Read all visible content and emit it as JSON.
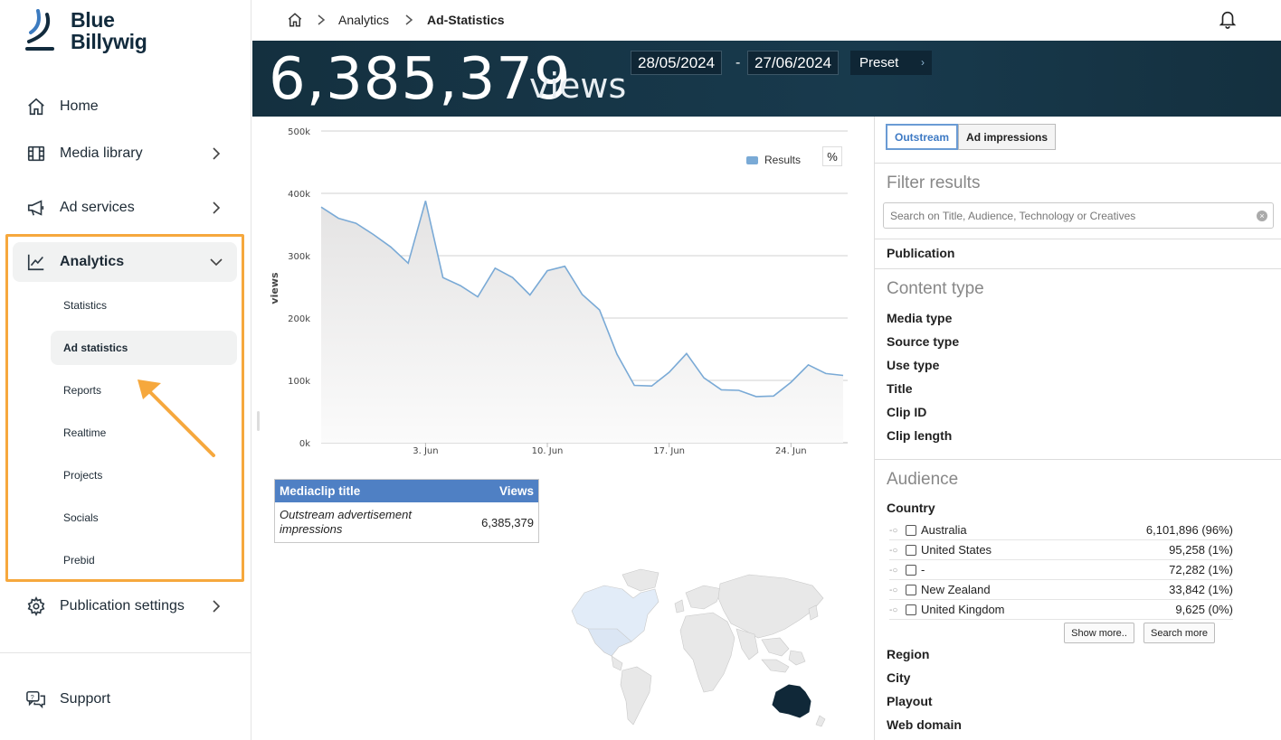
{
  "sidebar": {
    "logo": {
      "line1": "Blue",
      "line2": "Billywig"
    },
    "items": [
      {
        "label": "Home",
        "icon": "home-icon"
      },
      {
        "label": "Media library",
        "icon": "film-icon"
      },
      {
        "label": "Ad services",
        "icon": "megaphone-icon"
      },
      {
        "label": "Analytics",
        "icon": "chart-line-icon"
      },
      {
        "label": "Publication settings",
        "icon": "gear-icon"
      },
      {
        "label": "Support",
        "icon": "support-chat-icon"
      }
    ],
    "analytics_sub": [
      "Statistics",
      "Ad statistics",
      "Reports",
      "Realtime",
      "Projects",
      "Socials",
      "Prebid"
    ],
    "active_sub": "Ad statistics",
    "highlight_color": "#f6a83d"
  },
  "breadcrumb": {
    "home_icon": "home-icon",
    "items": [
      "Analytics",
      "Ad-Statistics"
    ]
  },
  "banner": {
    "total": "6,385,379",
    "unit": "views",
    "date_from": "28/05/2024",
    "date_sep": "-",
    "date_to": "27/06/2024",
    "preset_label": "Preset",
    "preset_caret": "›"
  },
  "chart_data": {
    "type": "area",
    "ylabel": "views",
    "ylim": [
      0,
      500000
    ],
    "y_ticks": [
      "0k",
      "100k",
      "200k",
      "300k",
      "400k",
      "500k"
    ],
    "x_ticks": [
      {
        "label": "3. Jun",
        "day": 6
      },
      {
        "label": "10. Jun",
        "day": 13
      },
      {
        "label": "17. Jun",
        "day": 20
      },
      {
        "label": "24. Jun",
        "day": 27
      }
    ],
    "legend": "Results",
    "percent_toggle": "%",
    "x_start_date": "2024-05-28",
    "series": [
      {
        "name": "Results",
        "values": [
          378000,
          360000,
          352000,
          334000,
          314000,
          288000,
          388000,
          265000,
          252000,
          234000,
          280000,
          265000,
          237000,
          276000,
          283000,
          238000,
          213000,
          142000,
          92000,
          91000,
          113000,
          143000,
          104000,
          85000,
          84000,
          74000,
          75000,
          97000,
          125000,
          111000,
          108000
        ]
      }
    ],
    "colors": {
      "line": "#7aaad6",
      "fill_top": "#e6e6e6",
      "fill_bottom": "#fbfbfb"
    }
  },
  "table": {
    "header_title": "Mediaclip title",
    "header_views": "Views",
    "rows": [
      {
        "title": "Outstream advertisement impressions",
        "views": "6,385,379"
      }
    ]
  },
  "right_panel": {
    "tabs": [
      "Outstream",
      "Ad impressions"
    ],
    "active_tab": "Outstream",
    "filter_title": "Filter results",
    "search_placeholder": "Search on Title, Audience, Technology or Creatives",
    "publication_label": "Publication",
    "content_type_title": "Content type",
    "content_fields": [
      "Media type",
      "Source type",
      "Use type",
      "Title",
      "Clip ID",
      "Clip length"
    ],
    "audience_title": "Audience",
    "country_label": "Country",
    "countries": [
      {
        "name": "Australia",
        "value": "6,101,896 (96%)"
      },
      {
        "name": "United States",
        "value": "95,258 (1%)"
      },
      {
        "name": "-",
        "value": "72,282 (1%)"
      },
      {
        "name": "New Zealand",
        "value": "33,842 (1%)"
      },
      {
        "name": "United Kingdom",
        "value": "9,625 (0%)"
      }
    ],
    "show_more": "Show more..",
    "search_more": "Search more",
    "audience_fields": [
      "Region",
      "City",
      "Playout",
      "Web domain"
    ]
  }
}
